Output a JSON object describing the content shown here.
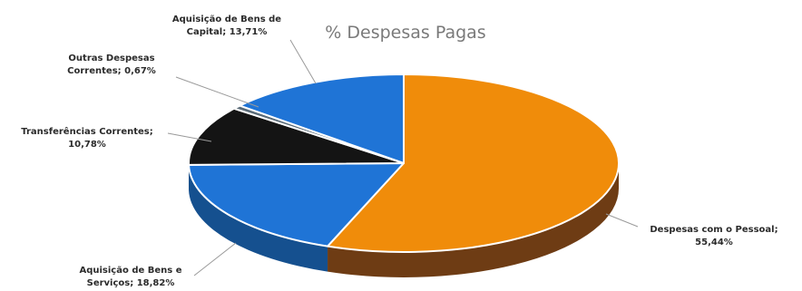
{
  "chart_data": {
    "type": "pie",
    "title": "% Despesas Pagas",
    "slices": [
      {
        "label": "Despesas com o Pessoal;",
        "value_text": "55,44%",
        "value": 55.44,
        "color": "#f08c0a",
        "side_color": "#6e3c14"
      },
      {
        "label": "Aquisição de Bens e",
        "label2": "Serviços; 18,82%",
        "value": 18.82,
        "color": "#1f74d6",
        "side_color": "#15508f"
      },
      {
        "label": "Transferências Correntes;",
        "value_text": "10,78%",
        "value": 10.78,
        "color": "#141414",
        "side_color": "#0a0a0a"
      },
      {
        "label": "Outras Despesas",
        "label2": "Correntes; 0,67%",
        "value": 0.67,
        "color": "#5a6b78",
        "side_color": "#3d4a55"
      },
      {
        "label": "Aquisição de Bens de",
        "label2": "Capital; 13,71%",
        "value": 13.71,
        "color": "#1f74d6",
        "side_color": "#15508f"
      }
    ]
  }
}
